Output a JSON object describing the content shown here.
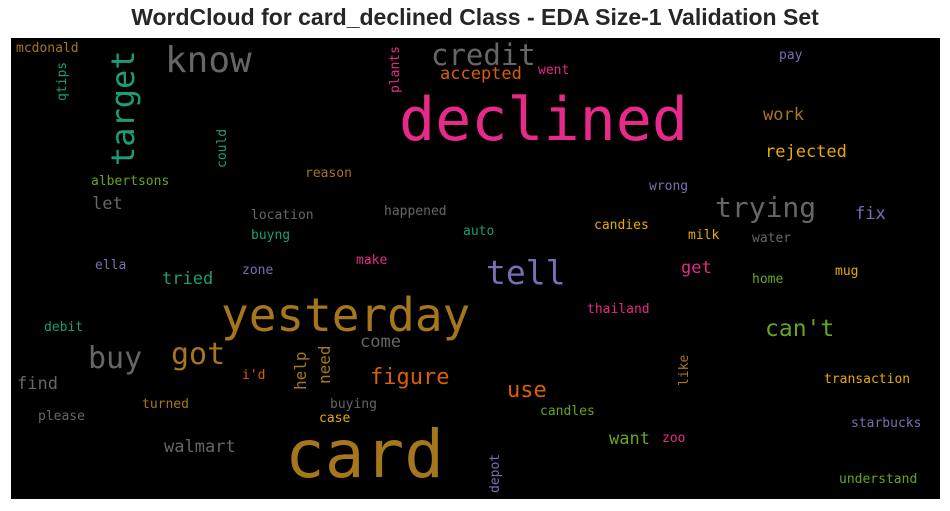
{
  "chart_data": {
    "type": "wordcloud",
    "title": "WordCloud for card_declined Class - EDA Size-1 Validation Set",
    "background": "#000000",
    "colors": {
      "pink": "#e7298a",
      "gray": "#666666",
      "olive": "#a6761d",
      "teal": "#1b9e77",
      "purple": "#7570b3",
      "orange": "#d95f02",
      "green": "#66a61e",
      "gold": "#e6ab02"
    },
    "words": [
      {
        "text": "card",
        "color": "#a6761d",
        "orientation": "horizontal"
      },
      {
        "text": "declined",
        "color": "#e7298a",
        "orientation": "horizontal"
      },
      {
        "text": "yesterday",
        "color": "#a6761d",
        "orientation": "horizontal"
      },
      {
        "text": "know",
        "color": "#666666",
        "orientation": "horizontal"
      },
      {
        "text": "target",
        "color": "#1b9e77",
        "orientation": "vertical"
      },
      {
        "text": "credit",
        "color": "#666666",
        "orientation": "horizontal"
      },
      {
        "text": "accepted",
        "color": "#d95f02",
        "orientation": "horizontal"
      },
      {
        "text": "tell",
        "color": "#7570b3",
        "orientation": "horizontal"
      },
      {
        "text": "trying",
        "color": "#666666",
        "orientation": "horizontal"
      },
      {
        "text": "got",
        "color": "#a6761d",
        "orientation": "horizontal"
      },
      {
        "text": "buy",
        "color": "#666666",
        "orientation": "horizontal"
      },
      {
        "text": "can't",
        "color": "#66a61e",
        "orientation": "horizontal"
      },
      {
        "text": "figure",
        "color": "#d95f02",
        "orientation": "horizontal"
      },
      {
        "text": "use",
        "color": "#d95f02",
        "orientation": "horizontal"
      },
      {
        "text": "rejected",
        "color": "#e6ab02",
        "orientation": "horizontal"
      },
      {
        "text": "work",
        "color": "#a6761d",
        "orientation": "horizontal"
      },
      {
        "text": "fix",
        "color": "#7570b3",
        "orientation": "horizontal"
      },
      {
        "text": "get",
        "color": "#e7298a",
        "orientation": "horizontal"
      },
      {
        "text": "tried",
        "color": "#1b9e77",
        "orientation": "horizontal"
      },
      {
        "text": "want",
        "color": "#66a61e",
        "orientation": "horizontal"
      },
      {
        "text": "walmart",
        "color": "#666666",
        "orientation": "horizontal"
      },
      {
        "text": "find",
        "color": "#666666",
        "orientation": "horizontal"
      },
      {
        "text": "let",
        "color": "#666666",
        "orientation": "horizontal"
      },
      {
        "text": "come",
        "color": "#666666",
        "orientation": "horizontal"
      },
      {
        "text": "need",
        "color": "#a6761d",
        "orientation": "vertical"
      },
      {
        "text": "help",
        "color": "#a6761d",
        "orientation": "vertical"
      },
      {
        "text": "mcdonald",
        "color": "#a6761d",
        "orientation": "horizontal"
      },
      {
        "text": "qtips",
        "color": "#1b9e77",
        "orientation": "vertical"
      },
      {
        "text": "plants",
        "color": "#e7298a",
        "orientation": "vertical"
      },
      {
        "text": "went",
        "color": "#e7298a",
        "orientation": "horizontal"
      },
      {
        "text": "pay",
        "color": "#7570b3",
        "orientation": "horizontal"
      },
      {
        "text": "could",
        "color": "#1b9e77",
        "orientation": "vertical"
      },
      {
        "text": "reason",
        "color": "#a6761d",
        "orientation": "horizontal"
      },
      {
        "text": "albertsons",
        "color": "#66a61e",
        "orientation": "horizontal"
      },
      {
        "text": "wrong",
        "color": "#7570b3",
        "orientation": "horizontal"
      },
      {
        "text": "location",
        "color": "#666666",
        "orientation": "horizontal"
      },
      {
        "text": "happened",
        "color": "#666666",
        "orientation": "horizontal"
      },
      {
        "text": "buyng",
        "color": "#1b9e77",
        "orientation": "horizontal"
      },
      {
        "text": "auto",
        "color": "#1b9e77",
        "orientation": "horizontal"
      },
      {
        "text": "candies",
        "color": "#e6ab02",
        "orientation": "horizontal"
      },
      {
        "text": "milk",
        "color": "#e6ab02",
        "orientation": "horizontal"
      },
      {
        "text": "water",
        "color": "#666666",
        "orientation": "horizontal"
      },
      {
        "text": "ella",
        "color": "#7570b3",
        "orientation": "horizontal"
      },
      {
        "text": "zone",
        "color": "#7570b3",
        "orientation": "horizontal"
      },
      {
        "text": "make",
        "color": "#e7298a",
        "orientation": "horizontal"
      },
      {
        "text": "home",
        "color": "#66a61e",
        "orientation": "horizontal"
      },
      {
        "text": "mug",
        "color": "#e6ab02",
        "orientation": "horizontal"
      },
      {
        "text": "debit",
        "color": "#1b9e77",
        "orientation": "horizontal"
      },
      {
        "text": "thailand",
        "color": "#e7298a",
        "orientation": "horizontal"
      },
      {
        "text": "i'd",
        "color": "#d95f02",
        "orientation": "horizontal"
      },
      {
        "text": "like",
        "color": "#a6761d",
        "orientation": "vertical"
      },
      {
        "text": "transaction",
        "color": "#e6ab02",
        "orientation": "horizontal"
      },
      {
        "text": "please",
        "color": "#666666",
        "orientation": "horizontal"
      },
      {
        "text": "turned",
        "color": "#a6761d",
        "orientation": "horizontal"
      },
      {
        "text": "buying",
        "color": "#666666",
        "orientation": "horizontal"
      },
      {
        "text": "case",
        "color": "#e6ab02",
        "orientation": "horizontal"
      },
      {
        "text": "candles",
        "color": "#66a61e",
        "orientation": "horizontal"
      },
      {
        "text": "starbucks",
        "color": "#7570b3",
        "orientation": "horizontal"
      },
      {
        "text": "zoo",
        "color": "#e7298a",
        "orientation": "horizontal"
      },
      {
        "text": "depot",
        "color": "#7570b3",
        "orientation": "vertical"
      },
      {
        "text": "understand",
        "color": "#66a61e",
        "orientation": "horizontal"
      }
    ]
  }
}
